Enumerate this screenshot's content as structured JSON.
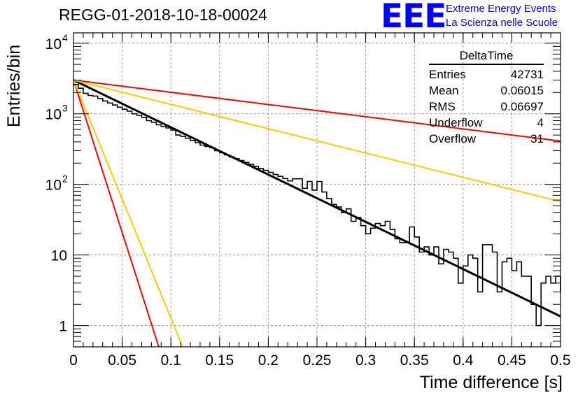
{
  "title": "REGG-01-2018-10-18-00024",
  "logo": {
    "mark": "EEE",
    "line1": "Extreme Energy Events",
    "line2": "La Scienza nelle Scuole",
    "color": "#0000ff"
  },
  "stats": {
    "name": "DeltaTime",
    "rows": [
      {
        "label": "Entries",
        "value": "42731"
      },
      {
        "label": "Mean",
        "value": "0.06015"
      },
      {
        "label": "RMS",
        "value": "0.06697"
      },
      {
        "label": "Underflow",
        "value": "4"
      },
      {
        "label": "Overflow",
        "value": "31"
      }
    ]
  },
  "chart_data": {
    "type": "line",
    "xlabel": "Time difference [s]",
    "ylabel": "Entries/bin",
    "xlim": [
      0,
      0.5
    ],
    "ylim": [
      0.5,
      14000
    ],
    "yscale": "log",
    "grid": true,
    "xticks": [
      "0",
      "0.05",
      "0.1",
      "0.15",
      "0.2",
      "0.25",
      "0.3",
      "0.35",
      "0.4",
      "0.45",
      "0.5"
    ],
    "yticks": [
      {
        "value": 1,
        "label": "1"
      },
      {
        "value": 10,
        "label": "10"
      },
      {
        "value": 100,
        "label": "10",
        "exp": "2"
      },
      {
        "value": 1000,
        "label": "10",
        "exp": "3"
      },
      {
        "value": 10000,
        "label": "10",
        "exp": "4"
      }
    ],
    "histogram": {
      "bin_width": 0.005,
      "color": "#000000",
      "values": [
        2600,
        2300,
        1950,
        1820,
        1780,
        1650,
        1520,
        1420,
        1330,
        1240,
        1160,
        1090,
        1000,
        950,
        890,
        800,
        760,
        700,
        660,
        630,
        590,
        500,
        480,
        450,
        420,
        390,
        360,
        345,
        330,
        300,
        280,
        262,
        245,
        232,
        218,
        205,
        192,
        180,
        168,
        158,
        148,
        138,
        130,
        121,
        112,
        120,
        120,
        88,
        110,
        83,
        110,
        78,
        63,
        52,
        48,
        40,
        45,
        30,
        34,
        26,
        20,
        24,
        28,
        26,
        30,
        23,
        17,
        15,
        15,
        25,
        18,
        11,
        13,
        10,
        13,
        7.5,
        12,
        11,
        9,
        4,
        7,
        10,
        9,
        3,
        14,
        14,
        11,
        3,
        8,
        9,
        6,
        8,
        5,
        5,
        2,
        1,
        4,
        5,
        4,
        5,
        3
      ]
    },
    "fit_lines": [
      {
        "color": "#000000",
        "width": 3,
        "x": [
          0,
          0.5
        ],
        "y": [
          3000,
          1.35
        ]
      },
      {
        "color": "#ff0000",
        "width": 2,
        "x": [
          0,
          0.5
        ],
        "y": [
          3000,
          410
        ]
      },
      {
        "color": "#ffcc00",
        "width": 2,
        "x": [
          0,
          0.5
        ],
        "y": [
          3000,
          57
        ]
      },
      {
        "color": "#ff0000",
        "width": 2,
        "x": [
          0,
          0.0876
        ],
        "y": [
          3000,
          0.5
        ]
      },
      {
        "color": "#ffcc00",
        "width": 2,
        "x": [
          0,
          0.1121
        ],
        "y": [
          3000,
          0.5
        ]
      }
    ]
  }
}
